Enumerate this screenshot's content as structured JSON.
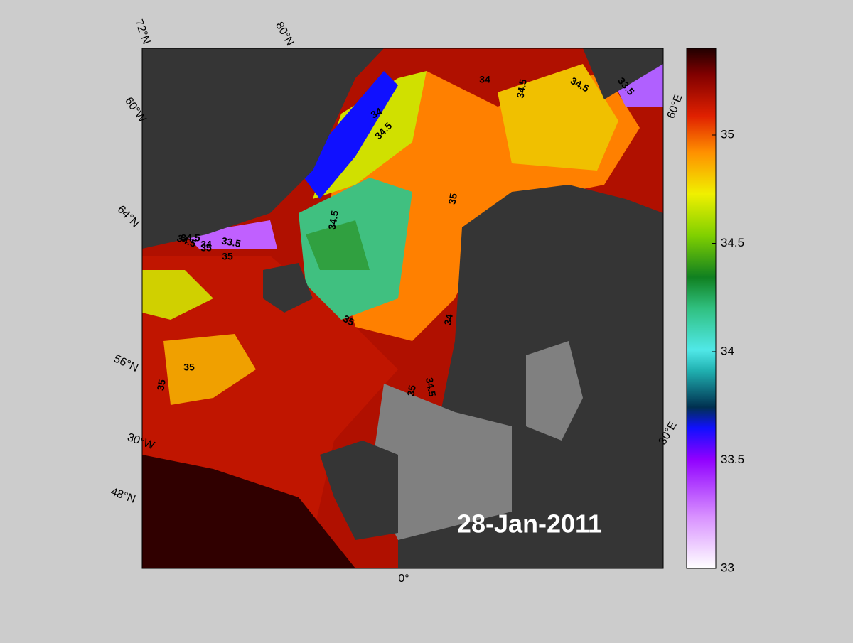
{
  "chart_data": {
    "type": "map",
    "date_label": "28-Jan-2011",
    "graticule_labels": [
      "72°N",
      "80°N",
      "60°W",
      "64°N",
      "56°N",
      "30°W",
      "48°N",
      "0°",
      "30°E",
      "60°E"
    ],
    "contour_labels": [
      "34",
      "34.5",
      "35",
      "34.5",
      "34",
      "34.5",
      "34.5",
      "33.5",
      "35",
      "34.5",
      "34",
      "34.5",
      "33.5",
      "35",
      "35",
      "35",
      "35",
      "34",
      "34.5",
      "35"
    ],
    "colorbar": {
      "ylim": [
        33,
        35.4
      ],
      "yticks": [
        33,
        33.5,
        34,
        34.5,
        35
      ]
    }
  }
}
